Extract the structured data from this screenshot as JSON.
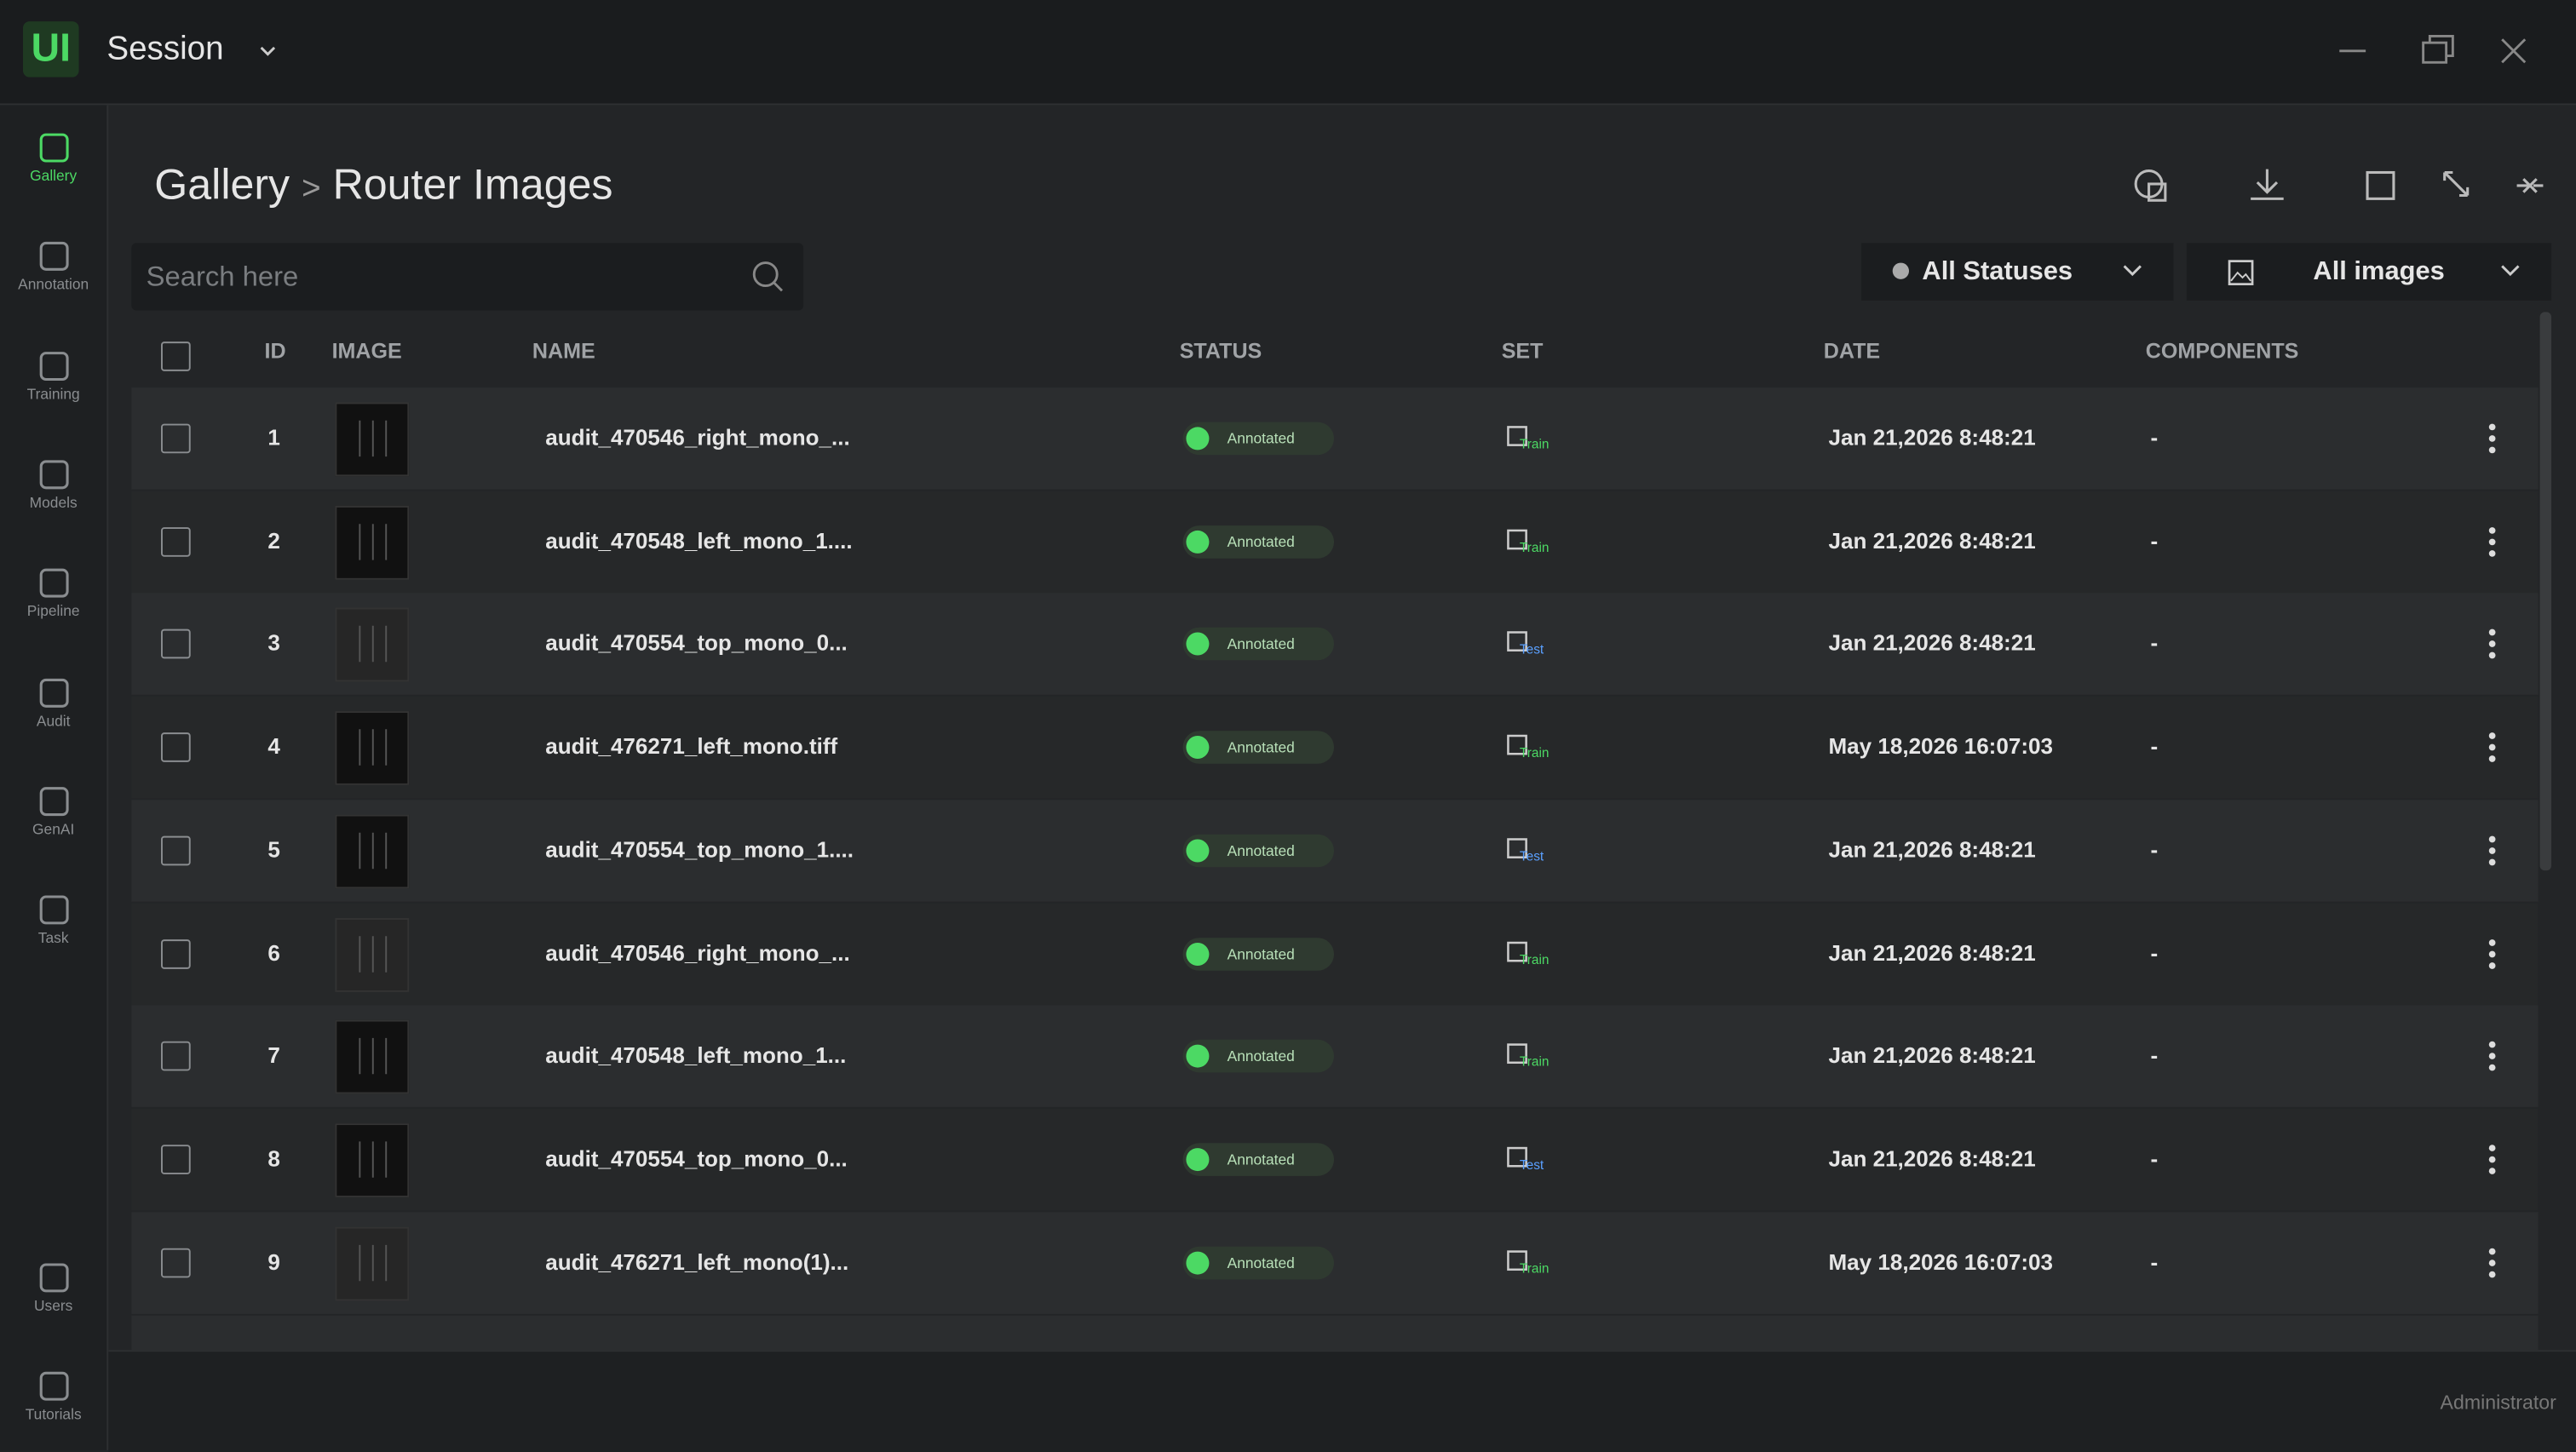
{
  "app": {
    "logo": "UI",
    "title": "Session"
  },
  "nav": [
    "Gallery",
    "Annotation",
    "Training",
    "Models",
    "Pipeline",
    "Audit",
    "GenAI",
    "Task"
  ],
  "nav_bottom": [
    "Users",
    "Tutorials"
  ],
  "breadcrumb": {
    "root": "Gallery",
    "separator": ">",
    "current": "Router Images"
  },
  "search": {
    "placeholder": "Search here"
  },
  "filters": {
    "status": "All Statuses",
    "images": "All images"
  },
  "table": {
    "columns": [
      "ID",
      "IMAGE",
      "NAME",
      "STATUS",
      "SET",
      "DATE",
      "COMPONENTS"
    ],
    "rows": [
      [
        "1",
        "audit_470546_right_mono_...",
        "Annotated",
        "Train",
        "Jan 21,2026 8:48:21",
        "-"
      ],
      [
        "2",
        "audit_470548_left_mono_1....",
        "Annotated",
        "Train",
        "Jan 21,2026 8:48:21",
        "-"
      ],
      [
        "3",
        "audit_470554_top_mono_0...",
        "Annotated",
        "Test",
        "Jan 21,2026 8:48:21",
        "-"
      ],
      [
        "4",
        "audit_476271_left_mono.tiff",
        "Annotated",
        "Train",
        "May 18,2026 16:07:03",
        "-"
      ],
      [
        "5",
        "audit_470554_top_mono_1....",
        "Annotated",
        "Test",
        "Jan 21,2026 8:48:21",
        "-"
      ],
      [
        "6",
        "audit_470546_right_mono_...",
        "Annotated",
        "Train",
        "Jan 21,2026 8:48:21",
        "-"
      ],
      [
        "7",
        "audit_470548_left_mono_1...",
        "Annotated",
        "Train",
        "Jan 21,2026 8:48:21",
        "-"
      ],
      [
        "8",
        "audit_470554_top_mono_0...",
        "Annotated",
        "Test",
        "Jan 21,2026 8:48:21",
        "-"
      ],
      [
        "9",
        "audit_476271_left_mono(1)...",
        "Annotated",
        "Train",
        "May 18,2026 16:07:03",
        "-"
      ]
    ]
  },
  "footer": {
    "user": "Administrator"
  }
}
